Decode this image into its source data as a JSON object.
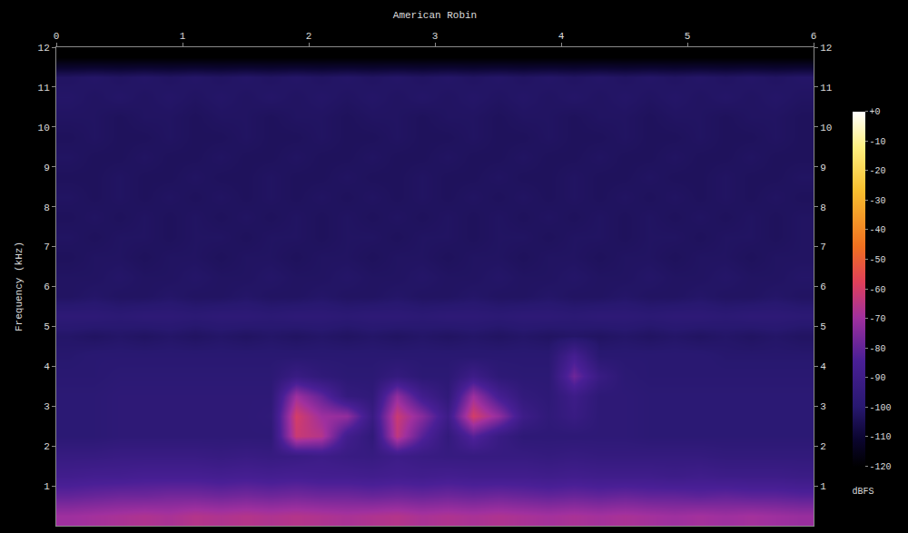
{
  "chart_data": {
    "type": "heatmap",
    "title": "American Robin",
    "y_label": "Frequency (kHz)",
    "colorbar_title": "dBFS",
    "grid": false,
    "xlim": [
      0,
      6
    ],
    "xticks": [
      0,
      1,
      2,
      3,
      4,
      5,
      6
    ],
    "ylim": [
      0,
      12
    ],
    "yticks": [
      1,
      2,
      3,
      4,
      5,
      6,
      7,
      8,
      9,
      10,
      11,
      12
    ],
    "y2lim": [
      0,
      12
    ],
    "y2ticks": [
      1,
      2,
      3,
      4,
      5,
      6,
      7,
      8,
      9,
      10,
      11,
      12
    ],
    "zlim": [
      -120,
      0
    ],
    "zticks": [
      {
        "value": 0,
        "label": "+0"
      },
      -10,
      -20,
      -30,
      -40,
      -50,
      -60,
      -70,
      -80,
      -90,
      -100,
      -110,
      -120
    ],
    "x": [
      0.1,
      0.3,
      0.5,
      0.7,
      0.9,
      1.1,
      1.3,
      1.5,
      1.7,
      1.9,
      2.1,
      2.3,
      2.5,
      2.7,
      2.9,
      3.1,
      3.3,
      3.5,
      3.7,
      3.9,
      4.1,
      4.3,
      4.5,
      4.7,
      4.9,
      5.1,
      5.3,
      5.5,
      5.7,
      5.9
    ],
    "y": [
      0.25,
      0.75,
      1.25,
      1.75,
      2.25,
      2.75,
      3.25,
      3.75,
      4.25,
      4.75,
      5.25,
      5.75,
      6.25,
      6.75,
      7.25,
      7.75,
      8.25,
      8.75,
      9.25,
      9.75,
      10.25,
      10.75,
      11.25,
      11.75
    ],
    "z": [
      [
        -70,
        -69,
        -68,
        -67,
        -68,
        -66,
        -67,
        -66,
        -67,
        -66,
        -67,
        -68,
        -67,
        -66,
        -68,
        -67,
        -68,
        -67,
        -68,
        -69,
        -68,
        -69,
        -68,
        -69,
        -70,
        -69,
        -70,
        -69,
        -70,
        -71
      ],
      [
        -80,
        -79,
        -78,
        -78,
        -77,
        -77,
        -78,
        -77,
        -78,
        -77,
        -78,
        -78,
        -79,
        -78,
        -79,
        -78,
        -79,
        -78,
        -79,
        -80,
        -79,
        -80,
        -79,
        -80,
        -80,
        -81,
        -80,
        -81,
        -81,
        -82
      ],
      [
        -88,
        -87,
        -87,
        -86,
        -86,
        -86,
        -87,
        -86,
        -87,
        -86,
        -87,
        -87,
        -88,
        -87,
        -88,
        -87,
        -88,
        -88,
        -88,
        -89,
        -88,
        -89,
        -89,
        -89,
        -90,
        -89,
        -90,
        -90,
        -90,
        -91
      ],
      [
        -93,
        -93,
        -92,
        -92,
        -92,
        -92,
        -93,
        -92,
        -93,
        -92,
        -90,
        -92,
        -93,
        -90,
        -92,
        -93,
        -93,
        -93,
        -93,
        -94,
        -93,
        -94,
        -94,
        -94,
        -94,
        -94,
        -95,
        -95,
        -95,
        -95
      ],
      [
        -98,
        -98,
        -97,
        -97,
        -97,
        -97,
        -97,
        -97,
        -97,
        -62,
        -66,
        -88,
        -96,
        -64,
        -82,
        -95,
        -82,
        -92,
        -97,
        -97,
        -97,
        -97,
        -97,
        -98,
        -98,
        -98,
        -98,
        -98,
        -98,
        -98
      ],
      [
        -98,
        -98,
        -97,
        -97,
        -97,
        -97,
        -97,
        -97,
        -96,
        -60,
        -70,
        -72,
        -92,
        -62,
        -74,
        -90,
        -60,
        -72,
        -90,
        -96,
        -92,
        -97,
        -97,
        -98,
        -98,
        -98,
        -98,
        -98,
        -98,
        -98
      ],
      [
        -98,
        -98,
        -97,
        -97,
        -97,
        -97,
        -97,
        -97,
        -97,
        -70,
        -80,
        -94,
        -96,
        -72,
        -88,
        -96,
        -70,
        -86,
        -95,
        -97,
        -90,
        -97,
        -97,
        -98,
        -98,
        -98,
        -98,
        -98,
        -98,
        -98
      ],
      [
        -99,
        -99,
        -98,
        -98,
        -98,
        -98,
        -98,
        -98,
        -98,
        -92,
        -96,
        -98,
        -98,
        -94,
        -98,
        -98,
        -90,
        -97,
        -98,
        -98,
        -78,
        -92,
        -98,
        -99,
        -99,
        -99,
        -99,
        -99,
        -99,
        -99
      ],
      [
        -100,
        -99,
        -99,
        -99,
        -99,
        -99,
        -99,
        -99,
        -99,
        -99,
        -99,
        -99,
        -99,
        -99,
        -99,
        -99,
        -99,
        -99,
        -99,
        -99,
        -86,
        -99,
        -99,
        -99,
        -99,
        -99,
        -100,
        -100,
        -100,
        -100
      ],
      [
        -101,
        -102,
        -101,
        -102,
        -101,
        -102,
        -101,
        -102,
        -101,
        -102,
        -101,
        -102,
        -101,
        -102,
        -101,
        -102,
        -101,
        -102,
        -101,
        -102,
        -101,
        -102,
        -101,
        -102,
        -101,
        -102,
        -101,
        -102,
        -101,
        -102
      ],
      [
        -97,
        -97,
        -98,
        -97,
        -97,
        -98,
        -97,
        -97,
        -98,
        -97,
        -97,
        -98,
        -97,
        -97,
        -98,
        -97,
        -97,
        -98,
        -97,
        -97,
        -98,
        -97,
        -97,
        -98,
        -97,
        -97,
        -98,
        -97,
        -97,
        -98
      ],
      [
        -102,
        -101,
        -102,
        -102,
        -101,
        -102,
        -102,
        -101,
        -102,
        -102,
        -101,
        -102,
        -102,
        -101,
        -102,
        -102,
        -101,
        -102,
        -102,
        -101,
        -102,
        -102,
        -101,
        -102,
        -102,
        -101,
        -102,
        -102,
        -101,
        -102
      ],
      [
        -102,
        -102,
        -101,
        -102,
        -102,
        -101,
        -102,
        -102,
        -101,
        -102,
        -102,
        -101,
        -102,
        -102,
        -101,
        -102,
        -102,
        -101,
        -102,
        -102,
        -101,
        -102,
        -102,
        -101,
        -102,
        -102,
        -101,
        -102,
        -102,
        -101
      ],
      [
        -103,
        -102,
        -102,
        -103,
        -102,
        -102,
        -103,
        -102,
        -102,
        -103,
        -102,
        -102,
        -103,
        -102,
        -102,
        -103,
        -102,
        -102,
        -103,
        -102,
        -102,
        -103,
        -102,
        -102,
        -103,
        -102,
        -102,
        -103,
        -102,
        -102
      ],
      [
        -102,
        -103,
        -102,
        -102,
        -103,
        -102,
        -102,
        -103,
        -102,
        -102,
        -103,
        -102,
        -102,
        -103,
        -102,
        -102,
        -103,
        -102,
        -102,
        -103,
        -102,
        -102,
        -103,
        -102,
        -102,
        -103,
        -102,
        -102,
        -103,
        -102
      ],
      [
        -103,
        -102,
        -103,
        -102,
        -103,
        -102,
        -103,
        -102,
        -103,
        -102,
        -103,
        -102,
        -103,
        -102,
        -103,
        -102,
        -103,
        -102,
        -103,
        -102,
        -103,
        -102,
        -103,
        -102,
        -103,
        -102,
        -103,
        -102,
        -103,
        -102
      ],
      [
        -102,
        -103,
        -102,
        -103,
        -102,
        -103,
        -102,
        -103,
        -102,
        -103,
        -102,
        -103,
        -102,
        -103,
        -102,
        -103,
        -102,
        -103,
        -102,
        -103,
        -102,
        -103,
        -102,
        -103,
        -102,
        -103,
        -102,
        -103,
        -102,
        -103
      ],
      [
        -103,
        -103,
        -102,
        -103,
        -103,
        -102,
        -103,
        -103,
        -102,
        -103,
        -103,
        -102,
        -103,
        -103,
        -102,
        -103,
        -103,
        -102,
        -103,
        -103,
        -102,
        -103,
        -103,
        -102,
        -103,
        -103,
        -102,
        -103,
        -103,
        -102
      ],
      [
        -102,
        -103,
        -103,
        -102,
        -103,
        -103,
        -102,
        -103,
        -103,
        -102,
        -103,
        -103,
        -102,
        -103,
        -103,
        -102,
        -103,
        -103,
        -102,
        -103,
        -103,
        -102,
        -103,
        -103,
        -102,
        -103,
        -103,
        -102,
        -103,
        -103
      ],
      [
        -103,
        -102,
        -103,
        -103,
        -102,
        -103,
        -103,
        -102,
        -103,
        -103,
        -102,
        -103,
        -103,
        -102,
        -103,
        -103,
        -102,
        -103,
        -103,
        -102,
        -103,
        -103,
        -102,
        -103,
        -103,
        -102,
        -103,
        -103,
        -102,
        -103
      ],
      [
        -102,
        -102,
        -103,
        -102,
        -102,
        -103,
        -102,
        -102,
        -103,
        -102,
        -102,
        -103,
        -102,
        -102,
        -103,
        -102,
        -102,
        -103,
        -102,
        -102,
        -103,
        -102,
        -102,
        -103,
        -102,
        -102,
        -103,
        -102,
        -102,
        -103
      ],
      [
        -101,
        -102,
        -101,
        -102,
        -101,
        -102,
        -101,
        -102,
        -101,
        -102,
        -101,
        -102,
        -101,
        -102,
        -101,
        -102,
        -101,
        -102,
        -101,
        -102,
        -101,
        -102,
        -101,
        -102,
        -101,
        -102,
        -101,
        -102,
        -101,
        -102
      ],
      [
        -102,
        -101,
        -102,
        -101,
        -102,
        -101,
        -102,
        -101,
        -102,
        -101,
        -102,
        -101,
        -102,
        -101,
        -102,
        -101,
        -102,
        -101,
        -102,
        -101,
        -102,
        -101,
        -102,
        -101,
        -102,
        -101,
        -102,
        -101,
        -102,
        -101
      ],
      [
        -120,
        -120,
        -120,
        -120,
        -120,
        -120,
        -120,
        -120,
        -120,
        -120,
        -120,
        -120,
        -120,
        -120,
        -120,
        -120,
        -120,
        -120,
        -120,
        -120,
        -120,
        -120,
        -120,
        -120,
        -120,
        -120,
        -120,
        -120,
        -120,
        -120
      ]
    ]
  }
}
